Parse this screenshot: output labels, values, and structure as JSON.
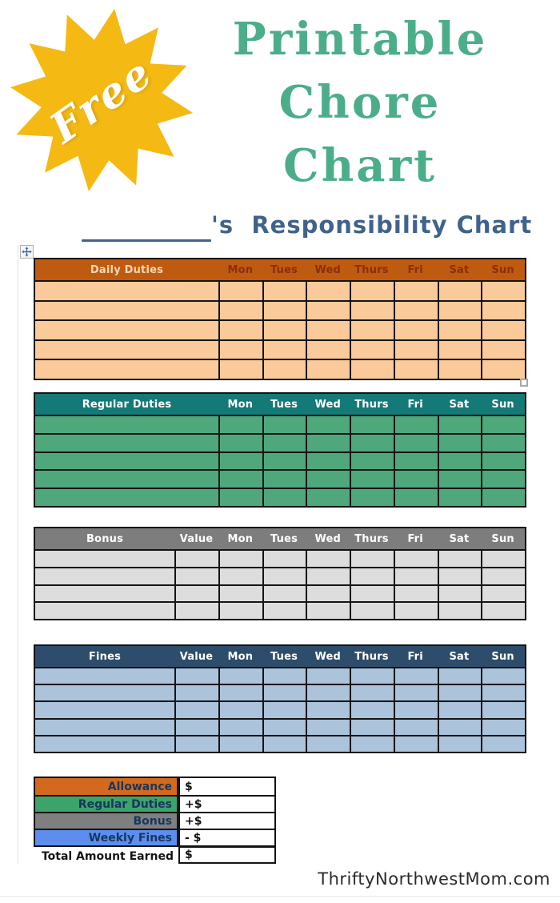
{
  "badge": {
    "label": "Free"
  },
  "title": {
    "lines": [
      "Printable",
      "Chore",
      "Chart"
    ]
  },
  "name_line": {
    "suffix": "'s  Responsibility Chart"
  },
  "days": [
    "Mon",
    "Tues",
    "Wed",
    "Thurs",
    "Fri",
    "Sat",
    "Sun"
  ],
  "tables": {
    "daily": {
      "title": "Daily Duties",
      "rows": 5
    },
    "regular": {
      "title": "Regular Duties",
      "rows": 5
    },
    "bonus": {
      "title": "Bonus",
      "value_label": "Value",
      "rows": 4
    },
    "fines": {
      "title": "Fines",
      "value_label": "Value",
      "rows": 5
    }
  },
  "summary": {
    "rows": [
      {
        "label": "Allowance",
        "value": "$"
      },
      {
        "label": "Regular Duties",
        "value": "+$"
      },
      {
        "label": "Bonus",
        "value": "+$"
      },
      {
        "label": "Weekly Fines",
        "value": "- $"
      },
      {
        "label": "Total Amount Earned",
        "value": "$"
      }
    ]
  },
  "watermark": "ThriftyNorthwestMom.com",
  "colors": {
    "badge_yellow": "#F5B914",
    "title_green": "#4BAE89",
    "subtitle_blue": "#3F638B",
    "daily_header": "#BF5B10",
    "daily_body": "#FACA9A",
    "daily_day_text": "#8A2E0B",
    "regular_header": "#147A77",
    "regular_body": "#4EA87C",
    "bonus_header": "#7D7D7D",
    "bonus_body": "#DDDDDD",
    "fines_header": "#2E4D6C",
    "fines_body": "#ABC4DC",
    "summary_allowance": "#D2691E",
    "summary_regular": "#3CA36A",
    "summary_bonus": "#7F7F7F",
    "summary_fines": "#5D8EEE"
  }
}
